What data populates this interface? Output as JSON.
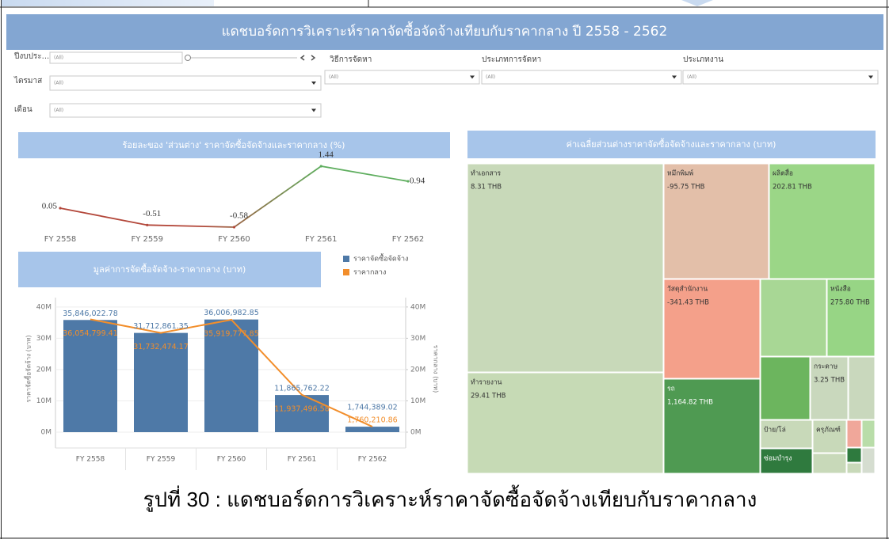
{
  "header": {
    "title": "แดชบอร์ดการวิเคราะห์ราคาจัดซื้อจัดจ้างเทียบกับราคากลาง ปี 2558 - 2562"
  },
  "filters": [
    {
      "label": "ปีงบประ...",
      "value": "(All)"
    },
    {
      "label": "ไตรมาส",
      "value": "(All)"
    },
    {
      "label": "เดือน",
      "value": "(All)"
    },
    {
      "label": "วิธีการจัดหา",
      "value": "(All)"
    },
    {
      "label": "ประเภทการจัดหา",
      "value": "(All)"
    },
    {
      "label": "ประเภทงาน",
      "value": "(All)"
    }
  ],
  "chart_data": [
    {
      "type": "line",
      "title": "ร้อยละของ 'ส่วนต่าง' ราคาจัดซื้อจัดจ้างและราคากลาง (%)",
      "categories": [
        "FY 2558",
        "FY 2559",
        "FY 2560",
        "FY 2561",
        "FY 2562"
      ],
      "values": [
        0.05,
        -0.51,
        -0.58,
        1.44,
        0.94
      ],
      "colors": [
        "#b3473a",
        "#5fae5f"
      ]
    },
    {
      "type": "bar",
      "title": "มูลค่าการจัดซื้อจัดจ้าง-ราคากลาง (บาท)",
      "categories": [
        "FY 2558",
        "FY 2559",
        "FY 2560",
        "FY 2561",
        "FY 2562"
      ],
      "ylabel": "ราคาจัดซื้อจัดจ้าง (บาท)",
      "y2label": "ราคากลาง (บาท)",
      "series": [
        {
          "name": "ราคาจัดซื้อจัดจ้าง",
          "type": "bar",
          "color": "#4e79a7",
          "values": [
            35846022.78,
            31712861.35,
            36006982.85,
            11865762.22,
            1744389.02
          ],
          "value_labels": [
            "35,846,022.78",
            "31,712,861.35",
            "36,006,982.85",
            "11,865,762.22",
            "1,744,389.02"
          ]
        },
        {
          "name": "ราคากลาง",
          "type": "line",
          "color": "#f28e2b",
          "axis": "y2",
          "values": [
            36054799.41,
            31732474.17,
            35919777.85,
            11937496.58,
            1760210.86
          ],
          "value_labels": [
            "36,054,799.41",
            "31,732,474.17",
            "35,919,777.85",
            "11,937,496.58",
            "1,760,210.86"
          ]
        }
      ],
      "ylim": [
        0,
        43000000
      ],
      "yticks": [
        {
          "value": 0,
          "label": "0M"
        },
        {
          "value": 10000000,
          "label": "10M"
        },
        {
          "value": 20000000,
          "label": "20M"
        },
        {
          "value": 30000000,
          "label": "30M"
        },
        {
          "value": 40000000,
          "label": "40M"
        }
      ],
      "y2lim": [
        0,
        43000000
      ],
      "y2ticks": [
        {
          "value": 0,
          "label": "0M"
        },
        {
          "value": 10000000,
          "label": "10M"
        },
        {
          "value": 20000000,
          "label": "20M"
        },
        {
          "value": 30000000,
          "label": "30M"
        },
        {
          "value": 40000000,
          "label": "40M"
        }
      ],
      "grid": true
    },
    {
      "type": "treemap",
      "title": "ค่าเฉลี่ยส่วนต่างราคาจัดซื้อจัดจ้างและราคากลาง (บาท)",
      "items": [
        {
          "name": "ทำเอกสาร",
          "value": 8.31,
          "value_label": "8.31 THB",
          "color": "#c8d9b9"
        },
        {
          "name": "ทำรายงาน",
          "value": 29.41,
          "value_label": "29.41 THB",
          "color": "#c6dab5"
        },
        {
          "name": "หมึกพิมพ์",
          "value": -95.75,
          "value_label": "-95.75 THB",
          "color": "#e3bfa9"
        },
        {
          "name": "ผลิตสื่อ",
          "value": 202.81,
          "value_label": "202.81 THB",
          "color": "#9bd687"
        },
        {
          "name": "วัสดุสำนักงาน",
          "value": -341.43,
          "value_label": "-341.43 THB",
          "color": "#f4a08a"
        },
        {
          "name": "หนังสือ",
          "value": 275.8,
          "value_label": "275.80 THB",
          "color": "#97d585"
        },
        {
          "name": "รถ",
          "value": 1164.82,
          "value_label": "1,164.82 THB",
          "color": "#4f9a52"
        },
        {
          "name": "กระดาษ",
          "value": 3.25,
          "value_label": "3.25 THB",
          "color": "#c9d8bd"
        },
        {
          "name": "ป้าย/โล่",
          "color": "#c8d9b9"
        },
        {
          "name": "ครุภัณฑ์",
          "color": "#c8d9b9"
        },
        {
          "name": "ซ่อมบำรุง",
          "color": "#2f7a3e"
        }
      ]
    }
  ],
  "caption": "รูปที่ 30 : แดชบอร์ดการวิเคราะห์ราคาจัดซื้อจัดจ้างเทียบกับราคากลาง"
}
